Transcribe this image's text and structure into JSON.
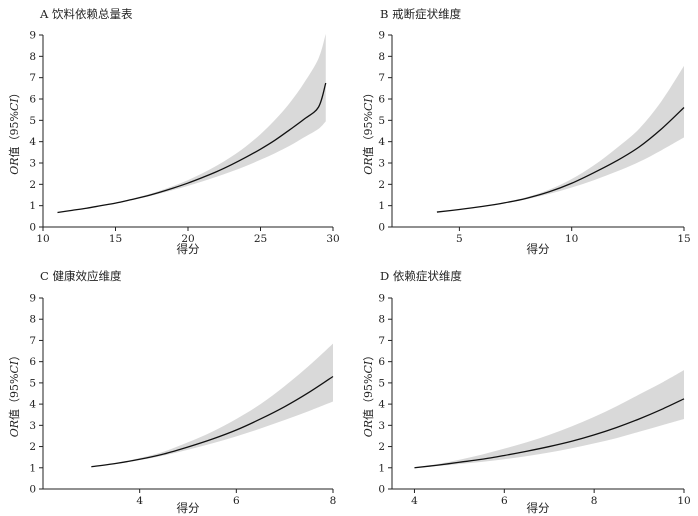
{
  "chart_data": [
    {
      "type": "line",
      "title": "A 饮料依赖总量表",
      "xlabel": "得分",
      "ylabel_italic": "OR",
      "ylabel_rest": "值（95%",
      "ylabel_ci": "CI",
      "ylabel_close": "）",
      "xlim": [
        10,
        30
      ],
      "ylim": [
        0,
        9
      ],
      "xticks": [
        10,
        15,
        20,
        25,
        30
      ],
      "yticks": [
        0,
        1,
        2,
        3,
        4,
        5,
        6,
        7,
        8,
        9
      ],
      "series": [
        {
          "x": [
            11,
            12,
            13,
            14,
            15,
            16,
            17,
            18,
            19,
            20,
            21,
            22,
            23,
            24,
            25,
            26,
            27,
            28,
            29,
            29.5
          ],
          "y": [
            0.68,
            0.78,
            0.88,
            1.0,
            1.12,
            1.27,
            1.43,
            1.62,
            1.83,
            2.06,
            2.32,
            2.6,
            2.92,
            3.27,
            3.65,
            4.07,
            4.55,
            5.05,
            5.62,
            6.75
          ],
          "lower": [
            0.68,
            0.77,
            0.87,
            0.98,
            1.1,
            1.24,
            1.39,
            1.56,
            1.74,
            1.93,
            2.14,
            2.36,
            2.6,
            2.86,
            3.15,
            3.46,
            3.8,
            4.2,
            4.6,
            4.95
          ],
          "upper": [
            0.68,
            0.79,
            0.9,
            1.02,
            1.15,
            1.3,
            1.48,
            1.69,
            1.93,
            2.2,
            2.52,
            2.88,
            3.3,
            3.78,
            4.35,
            5.02,
            5.8,
            6.75,
            7.9,
            9.05
          ]
        }
      ]
    },
    {
      "type": "line",
      "title": "B 戒断症状维度",
      "xlabel": "得分",
      "ylabel_italic": "OR",
      "ylabel_rest": "值（95%",
      "ylabel_ci": "CI",
      "ylabel_close": "）",
      "xlim": [
        2,
        15
      ],
      "ylim": [
        0,
        9
      ],
      "xticks": [
        5,
        10,
        15
      ],
      "yticks": [
        0,
        1,
        2,
        3,
        4,
        5,
        6,
        7,
        8,
        9
      ],
      "series": [
        {
          "x": [
            4,
            5,
            6,
            7,
            8,
            9,
            10,
            11,
            12,
            13,
            14,
            15
          ],
          "y": [
            0.7,
            0.82,
            0.96,
            1.13,
            1.35,
            1.65,
            2.05,
            2.55,
            3.1,
            3.75,
            4.6,
            5.6
          ],
          "lower": [
            0.7,
            0.81,
            0.94,
            1.1,
            1.3,
            1.55,
            1.85,
            2.2,
            2.6,
            3.05,
            3.6,
            4.2
          ],
          "upper": [
            0.7,
            0.83,
            0.98,
            1.16,
            1.4,
            1.75,
            2.25,
            2.9,
            3.7,
            4.6,
            5.9,
            7.55
          ]
        }
      ]
    },
    {
      "type": "line",
      "title": "C 健康效应维度",
      "xlabel": "得分",
      "ylabel_italic": "OR",
      "ylabel_rest": "值（95%",
      "ylabel_ci": "CI",
      "ylabel_close": "）",
      "xlim": [
        2,
        8
      ],
      "ylim": [
        0,
        9
      ],
      "xticks": [
        4,
        6,
        8
      ],
      "yticks": [
        0,
        1,
        2,
        3,
        4,
        5,
        6,
        7,
        8,
        9
      ],
      "series": [
        {
          "x": [
            3,
            3.5,
            4,
            4.5,
            5,
            5.5,
            6,
            6.5,
            7,
            7.5,
            8
          ],
          "y": [
            1.05,
            1.2,
            1.4,
            1.65,
            1.98,
            2.35,
            2.78,
            3.3,
            3.88,
            4.55,
            5.3
          ],
          "lower": [
            1.05,
            1.18,
            1.36,
            1.58,
            1.85,
            2.15,
            2.48,
            2.85,
            3.25,
            3.67,
            4.12
          ],
          "upper": [
            1.05,
            1.22,
            1.46,
            1.76,
            2.2,
            2.7,
            3.3,
            4.0,
            4.85,
            5.8,
            6.85
          ]
        }
      ]
    },
    {
      "type": "line",
      "title": "D 依赖症状维度",
      "xlabel": "得分",
      "ylabel_italic": "OR",
      "ylabel_rest": "值（95%",
      "ylabel_ci": "CI",
      "ylabel_close": "）",
      "xlim": [
        3.5,
        10
      ],
      "ylim": [
        0,
        9
      ],
      "xticks": [
        4,
        6,
        8,
        10
      ],
      "yticks": [
        0,
        1,
        2,
        3,
        4,
        5,
        6,
        7,
        8,
        9
      ],
      "series": [
        {
          "x": [
            4,
            4.5,
            5,
            5.5,
            6,
            6.5,
            7,
            7.5,
            8,
            8.5,
            9,
            9.5,
            10
          ],
          "y": [
            1.0,
            1.12,
            1.26,
            1.4,
            1.58,
            1.78,
            2.0,
            2.25,
            2.55,
            2.9,
            3.3,
            3.75,
            4.25
          ],
          "lower": [
            1.0,
            1.08,
            1.18,
            1.28,
            1.4,
            1.55,
            1.72,
            1.92,
            2.15,
            2.4,
            2.7,
            3.0,
            3.3
          ],
          "upper": [
            1.0,
            1.17,
            1.38,
            1.62,
            1.9,
            2.2,
            2.55,
            2.95,
            3.4,
            3.9,
            4.45,
            5.0,
            5.6
          ]
        }
      ]
    }
  ]
}
